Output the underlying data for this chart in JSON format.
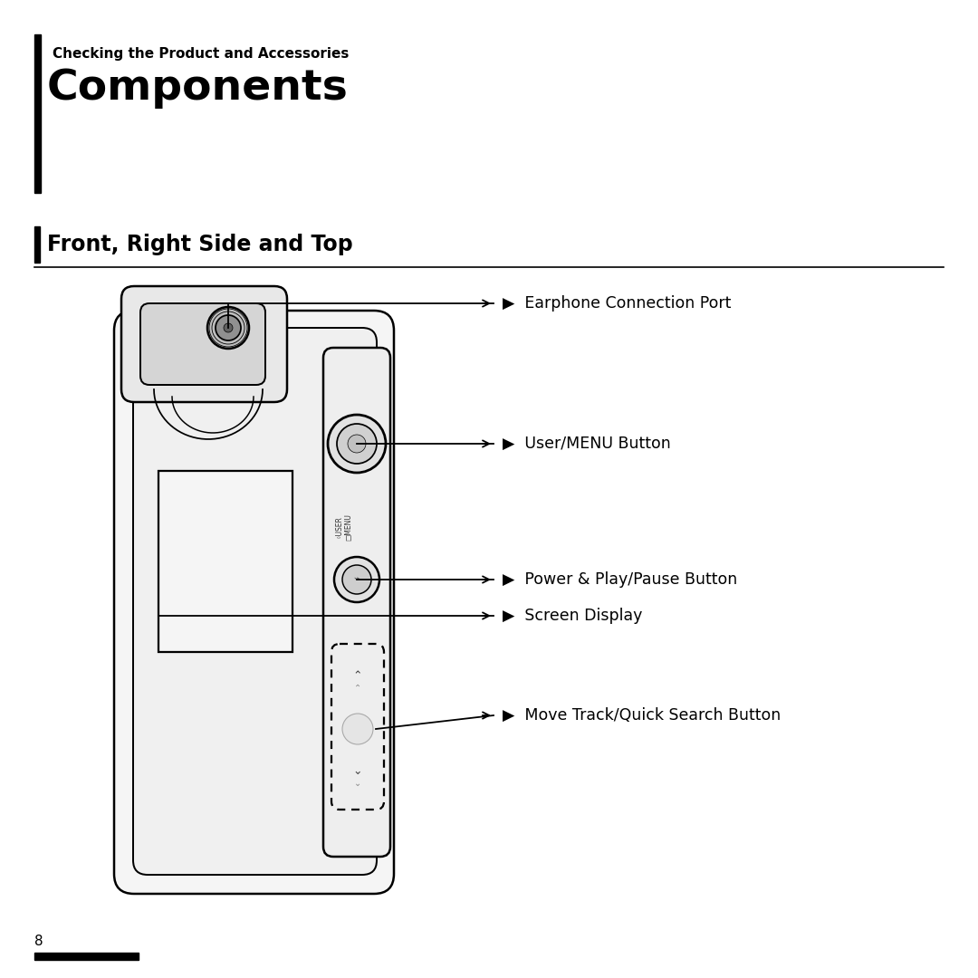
{
  "bg_color": "#ffffff",
  "page_number": "8",
  "subtitle": "Checking the Product and Accessories",
  "title": "Components",
  "section_title": "Front, Right Side and Top",
  "labels": [
    "Earphone Connection Port",
    "User/MENU Button",
    "Power & Play/Pause Button",
    "Screen Display",
    "Move Track/Quick Search Button"
  ],
  "line_color": "#000000",
  "text_color": "#000000",
  "title_fontsize": 34,
  "subtitle_fontsize": 11,
  "section_fontsize": 17,
  "label_fontsize": 12.5,
  "page_num_fontsize": 11
}
